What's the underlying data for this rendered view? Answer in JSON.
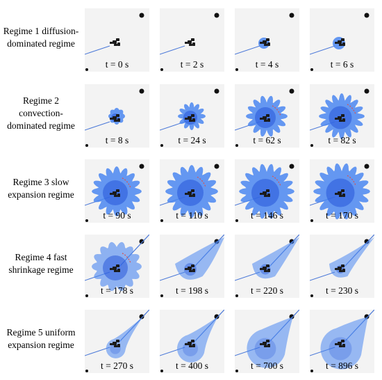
{
  "regimes": [
    {
      "label_lines": [
        "Regime 1 diffusion-",
        "dominated regime"
      ],
      "frames": [
        "t = 0 s",
        "t = 2 s",
        "t = 4 s",
        "t = 6 s"
      ]
    },
    {
      "label_lines": [
        "Regime 2",
        "convection-",
        "dominated regime"
      ],
      "frames": [
        "t = 8 s",
        "t = 24 s",
        "t = 62 s",
        "t = 82 s"
      ]
    },
    {
      "label_lines": [
        "Regime 3 slow",
        "expansion regime"
      ],
      "frames": [
        "t = 90 s",
        "t = 110 s",
        "t = 146 s",
        "t = 170 s"
      ]
    },
    {
      "label_lines": [
        "Regime 4 fast",
        "shrinkage regime"
      ],
      "frames": [
        "t = 178 s",
        "t = 198 s",
        "t = 220 s",
        "t = 230 s"
      ]
    },
    {
      "label_lines": [
        "Regime 5 uniform",
        "expansion regime"
      ],
      "frames": [
        "t = 270 s",
        "t = 400 s",
        "t = 700 s",
        "t = 896 s"
      ]
    }
  ],
  "colors": {
    "dye": "#4a86f0",
    "dye_dark": "#1f4fd8",
    "marker": "#d9534f",
    "background": "#f3f3f3"
  }
}
